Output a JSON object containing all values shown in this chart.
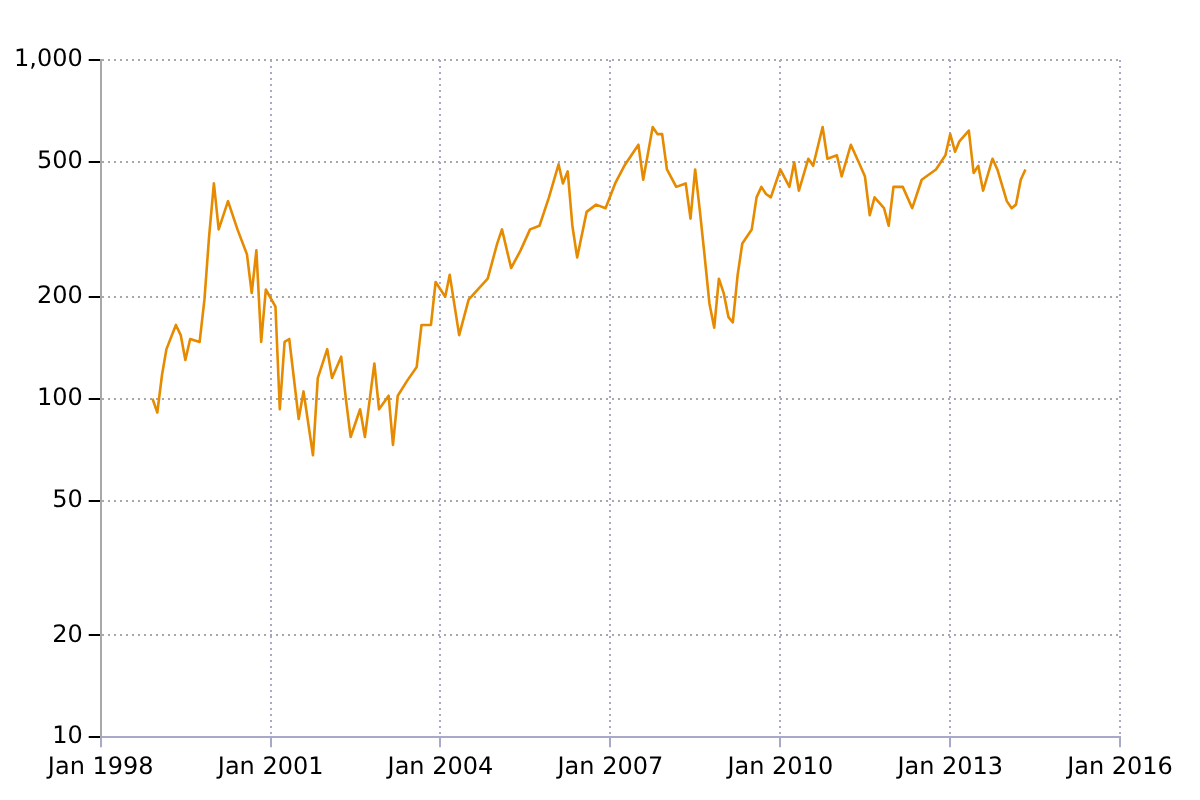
{
  "chart_data": {
    "type": "line",
    "log": "y",
    "grid": true,
    "legend": false,
    "marker": "none",
    "line_style": "solid",
    "xlim": [
      "1998-01",
      "2016-01"
    ],
    "xticks": [
      {
        "value": "1998-01",
        "label": "Jan 1998"
      },
      {
        "value": "2001-01",
        "label": "Jan 2001"
      },
      {
        "value": "2004-01",
        "label": "Jan 2004"
      },
      {
        "value": "2007-01",
        "label": "Jan 2007"
      },
      {
        "value": "2010-01",
        "label": "Jan 2010"
      },
      {
        "value": "2013-01",
        "label": "Jan 2013"
      },
      {
        "value": "2016-01",
        "label": "Jan 2016"
      }
    ],
    "ylim": [
      10,
      1000
    ],
    "yticks": [
      10,
      20,
      50,
      100,
      200,
      500,
      {
        "value": 1000,
        "label": "1,000"
      }
    ],
    "x": [
      "1998-12",
      "1999-01",
      "1999-02",
      "1999-03",
      "1999-05",
      "1999-06",
      "1999-07",
      "1999-08",
      "1999-10",
      "1999-11",
      "1999-12",
      "2000-01",
      "2000-02",
      "2000-04",
      "2000-06",
      "2000-08",
      "2000-09",
      "2000-10",
      "2000-11",
      "2000-12",
      "2001-02",
      "2001-03",
      "2001-04",
      "2001-05",
      "2001-07",
      "2001-08",
      "2001-10",
      "2001-11",
      "2002-01",
      "2002-02",
      "2002-04",
      "2002-05",
      "2002-06",
      "2002-08",
      "2002-09",
      "2002-11",
      "2002-12",
      "2003-02",
      "2003-03",
      "2003-04",
      "2003-06",
      "2003-08",
      "2003-09",
      "2003-11",
      "2003-12",
      "2004-02",
      "2004-03",
      "2004-05",
      "2004-07",
      "2004-11",
      "2005-01",
      "2005-02",
      "2005-04",
      "2005-06",
      "2005-08",
      "2005-10",
      "2005-12",
      "2006-02",
      "2006-03",
      "2006-04",
      "2006-05",
      "2006-06",
      "2006-08",
      "2006-10",
      "2006-12",
      "2007-02",
      "2007-04",
      "2007-07",
      "2007-08",
      "2007-10",
      "2007-11",
      "2007-12",
      "2008-01",
      "2008-03",
      "2008-05",
      "2008-06",
      "2008-07",
      "2008-08",
      "2008-09",
      "2008-10",
      "2008-11",
      "2008-12",
      "2009-01",
      "2009-02",
      "2009-03",
      "2009-04",
      "2009-05",
      "2009-07",
      "2009-08",
      "2009-09",
      "2009-10",
      "2009-11",
      "2010-01",
      "2010-03",
      "2010-04",
      "2010-05",
      "2010-07",
      "2010-08",
      "2010-10",
      "2010-11",
      "2011-01",
      "2011-02",
      "2011-04",
      "2011-06",
      "2011-07",
      "2011-08",
      "2011-09",
      "2011-11",
      "2011-12",
      "2012-01",
      "2012-03",
      "2012-05",
      "2012-07",
      "2012-10",
      "2012-12",
      "2013-01",
      "2013-02",
      "2013-03",
      "2013-05",
      "2013-06",
      "2013-07",
      "2013-08",
      "2013-10",
      "2013-11",
      "2014-01",
      "2014-02",
      "2014-03",
      "2014-04",
      "2014-05"
    ],
    "series": [
      {
        "color": "#e68a00",
        "values": [
          100,
          91,
          118,
          140,
          165,
          154,
          130,
          150,
          147,
          196,
          301,
          432,
          316,
          383,
          316,
          267,
          205,
          274,
          147,
          210,
          187,
          93,
          147,
          150,
          87,
          105,
          68,
          115,
          140,
          115,
          133,
          100,
          77,
          93,
          77,
          127,
          93,
          102,
          73,
          102,
          113,
          124,
          165,
          165,
          221,
          200,
          232,
          154,
          196,
          226,
          287,
          316,
          243,
          274,
          316,
          324,
          393,
          492,
          432,
          469,
          324,
          261,
          356,
          374,
          365,
          432,
          487,
          562,
          443,
          634,
          604,
          604,
          475,
          422,
          432,
          340,
          475,
          356,
          261,
          191,
          162,
          226,
          205,
          174,
          168,
          232,
          287,
          316,
          393,
          422,
          402,
          393,
          475,
          422,
          499,
          411,
          511,
          487,
          634,
          511,
          523,
          453,
          562,
          487,
          453,
          348,
          393,
          365,
          324,
          422,
          422,
          365,
          443,
          475,
          523,
          604,
          536,
          575,
          619,
          464,
          487,
          411,
          511,
          475,
          383,
          365,
          374,
          443,
          475
        ]
      }
    ]
  }
}
